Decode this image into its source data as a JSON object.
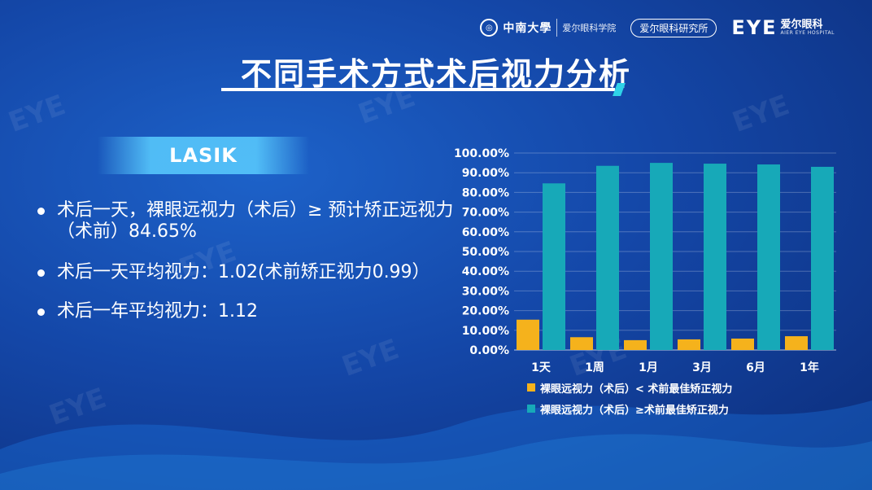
{
  "header": {
    "university_name": "中南大學",
    "university_sub": "爱尔眼科学院",
    "institute": "爱尔眼科研究所",
    "brand_mark": "EYE",
    "brand_cn": "爱尔眼科",
    "brand_en": "AIER EYE HOSPITAL"
  },
  "title": "不同手术方式术后视力分析",
  "section_tag": "LASIK",
  "bullets": [
    "术后一天，裸眼远视力（术后）≥ 预计矫正远视力（术前）84.65%",
    "术后一天平均视力：1.02(术前矫正视力0.99）",
    "术后一年平均视力：1.12"
  ],
  "colors": {
    "series_below": "#f5b21c",
    "series_above": "#17a9b8",
    "accent": "#2fd3e8"
  },
  "chart_data": {
    "type": "bar",
    "categories": [
      "1天",
      "1周",
      "1月",
      "3月",
      "6月",
      "1年"
    ],
    "series": [
      {
        "name": "裸眼远视力（术后）< 术前最佳矫正视力",
        "values": [
          15.4,
          6.5,
          5.0,
          5.4,
          5.8,
          7.0
        ]
      },
      {
        "name": "裸眼远视力（术后）≥术前最佳矫正视力",
        "values": [
          84.6,
          93.5,
          95.0,
          94.6,
          94.2,
          93.0
        ]
      }
    ],
    "ylim": [
      0,
      100
    ],
    "yticks": [
      "0.00%",
      "10.00%",
      "20.00%",
      "30.00%",
      "40.00%",
      "50.00%",
      "60.00%",
      "70.00%",
      "80.00%",
      "90.00%",
      "100.00%"
    ],
    "grid": true,
    "legend_position": "bottom"
  }
}
